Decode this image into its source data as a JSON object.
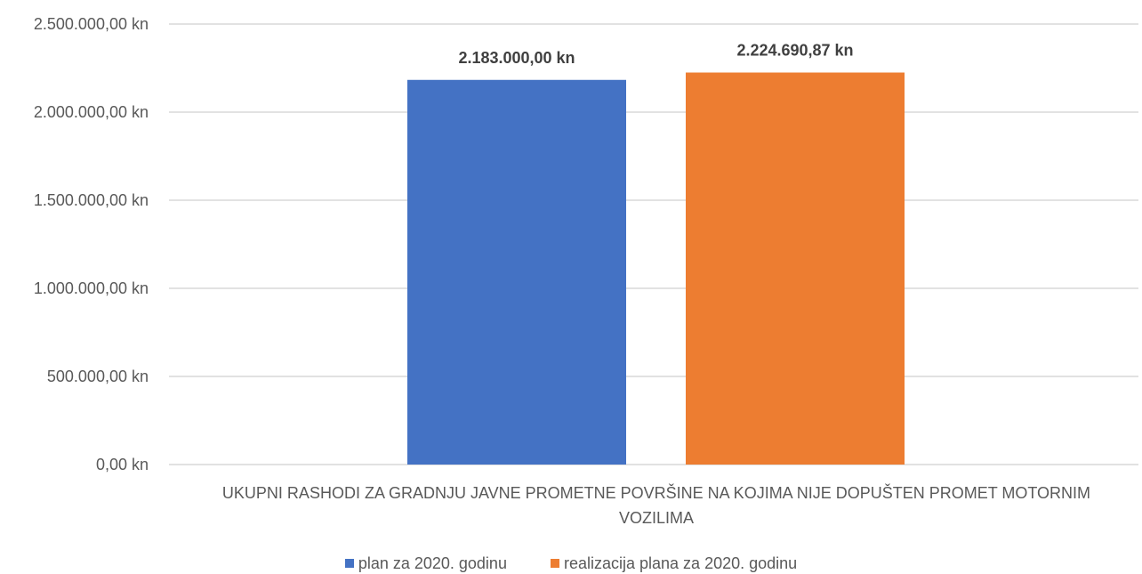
{
  "chart_data": {
    "type": "bar",
    "categories": [
      "UKUPNI RASHODI ZA GRADNJU JAVNE PROMETNE POVRŠINE NA KOJIMA NIJE DOPUŠTEN PROMET MOTORNIM VOZILIMA"
    ],
    "category_lines": [
      "UKUPNI RASHODI ZA GRADNJU JAVNE PROMETNE POVRŠINE NA KOJIMA NIJE DOPUŠTEN PROMET MOTORNIM",
      "VOZILIMA"
    ],
    "series": [
      {
        "name": "plan za 2020. godinu",
        "values": [
          2183000.0
        ],
        "label": "2.183.000,00 kn",
        "color": "#4472C4"
      },
      {
        "name": "realizacija plana za 2020. godinu",
        "values": [
          2224690.87
        ],
        "label": "2.224.690,87 kn",
        "color": "#ED7D31"
      }
    ],
    "ylim": [
      0,
      2500000
    ],
    "yticks": [
      0,
      500000,
      1000000,
      1500000,
      2000000,
      2500000
    ],
    "ytick_labels": [
      "0,00 kn",
      "500.000,00 kn",
      "1.000.000,00 kn",
      "1.500.000,00 kn",
      "2.000.000,00 kn",
      "2.500.000,00 kn"
    ],
    "grid": true,
    "legend_position": "bottom",
    "title": "",
    "xlabel": "",
    "ylabel": ""
  }
}
